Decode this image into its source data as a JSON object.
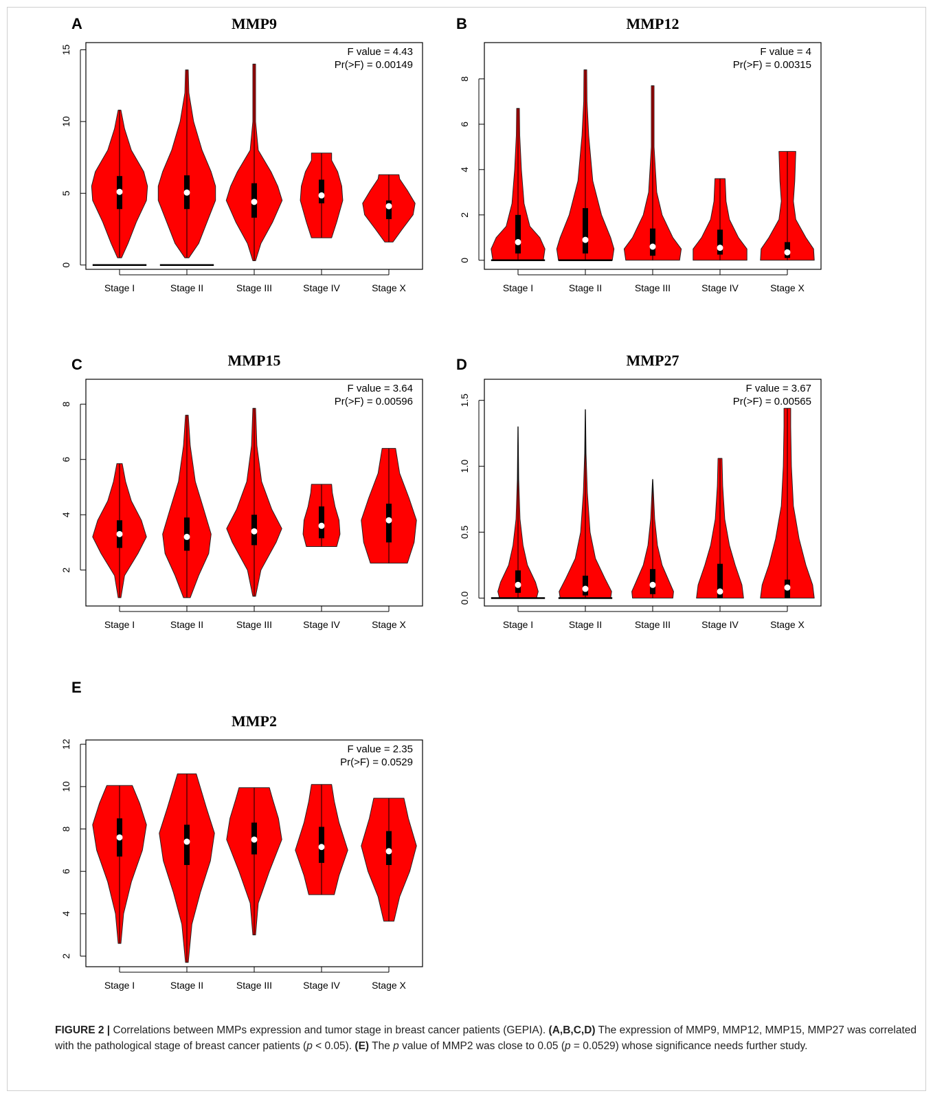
{
  "colors": {
    "violin": "#ff0000",
    "outline": "#222222",
    "box": "#000000",
    "median": "#ffffff"
  },
  "chart_data": [
    {
      "type": "violin",
      "panel_label": "A",
      "title": "MMP9",
      "categories": [
        "Stage I",
        "Stage II",
        "Stage III",
        "Stage IV",
        "Stage X"
      ],
      "ylim": [
        -0.3,
        15.5
      ],
      "yticks": [
        0,
        5,
        10,
        15
      ],
      "annotation": [
        "F value = 4.43",
        "Pr(>F) = 0.00149"
      ],
      "violins": [
        {
          "min": 0.5,
          "max": 10.8,
          "q1": 3.9,
          "median": 5.1,
          "q3": 6.2,
          "widths": [
            [
              0.5,
              0.06
            ],
            [
              1.5,
              0.25
            ],
            [
              3,
              0.5
            ],
            [
              4.5,
              0.8
            ],
            [
              5.5,
              0.83
            ],
            [
              6.5,
              0.72
            ],
            [
              8,
              0.35
            ],
            [
              9.5,
              0.15
            ],
            [
              10.8,
              0.02
            ]
          ],
          "zero_line": true
        },
        {
          "min": 0.5,
          "max": 13.6,
          "q1": 3.9,
          "median": 5.05,
          "q3": 6.25,
          "widths": [
            [
              0.5,
              0.06
            ],
            [
              1.5,
              0.35
            ],
            [
              3,
              0.6
            ],
            [
              4.5,
              0.85
            ],
            [
              5.5,
              0.85
            ],
            [
              6.5,
              0.72
            ],
            [
              8,
              0.45
            ],
            [
              10,
              0.2
            ],
            [
              12,
              0.06
            ],
            [
              13.6,
              0.0
            ]
          ],
          "zero_line": true
        },
        {
          "min": 0.3,
          "max": 14.0,
          "q1": 3.3,
          "median": 4.4,
          "q3": 5.7,
          "widths": [
            [
              0.3,
              0.02
            ],
            [
              1.5,
              0.2
            ],
            [
              3,
              0.55
            ],
            [
              4.5,
              0.83
            ],
            [
              5.5,
              0.7
            ],
            [
              6.5,
              0.5
            ],
            [
              8,
              0.12
            ],
            [
              10,
              0.03
            ],
            [
              14,
              0.0
            ]
          ]
        },
        {
          "min": 1.9,
          "max": 7.8,
          "q1": 4.3,
          "median": 4.85,
          "q3": 5.95,
          "widths": [
            [
              1.9,
              0.3
            ],
            [
              3,
              0.45
            ],
            [
              4.5,
              0.63
            ],
            [
              5.5,
              0.6
            ],
            [
              6.5,
              0.48
            ],
            [
              7.3,
              0.3
            ],
            [
              7.8,
              0.3
            ]
          ]
        },
        {
          "min": 1.6,
          "max": 6.3,
          "q1": 3.2,
          "median": 4.1,
          "q3": 4.5,
          "widths": [
            [
              1.6,
              0.12
            ],
            [
              2.5,
              0.4
            ],
            [
              3.5,
              0.72
            ],
            [
              4.3,
              0.78
            ],
            [
              5.2,
              0.55
            ],
            [
              6.0,
              0.32
            ],
            [
              6.3,
              0.3
            ]
          ]
        }
      ]
    },
    {
      "type": "violin",
      "panel_label": "B",
      "title": "MMP12",
      "categories": [
        "Stage I",
        "Stage II",
        "Stage III",
        "Stage IV",
        "Stage X"
      ],
      "ylim": [
        -0.4,
        9.6
      ],
      "yticks": [
        0,
        2,
        4,
        6,
        8
      ],
      "annotation": [
        "F value = 4",
        "Pr(>F) = 0.00315"
      ],
      "violins": [
        {
          "min": 0,
          "max": 6.7,
          "q1": 0.3,
          "median": 0.8,
          "q3": 2.0,
          "widths": [
            [
              0,
              0.75
            ],
            [
              0.5,
              0.8
            ],
            [
              1,
              0.65
            ],
            [
              1.5,
              0.35
            ],
            [
              2.5,
              0.18
            ],
            [
              4,
              0.1
            ],
            [
              5.5,
              0.05
            ],
            [
              6.7,
              0.0
            ]
          ],
          "zero_line": true
        },
        {
          "min": 0,
          "max": 8.4,
          "q1": 0.3,
          "median": 0.9,
          "q3": 2.3,
          "widths": [
            [
              0,
              0.8
            ],
            [
              0.5,
              0.85
            ],
            [
              1,
              0.75
            ],
            [
              2,
              0.48
            ],
            [
              3.5,
              0.22
            ],
            [
              5.5,
              0.1
            ],
            [
              7,
              0.05
            ],
            [
              8.4,
              0.0
            ]
          ],
          "zero_line": true
        },
        {
          "min": 0,
          "max": 7.7,
          "q1": 0.2,
          "median": 0.6,
          "q3": 1.4,
          "widths": [
            [
              0,
              0.8
            ],
            [
              0.5,
              0.85
            ],
            [
              1,
              0.6
            ],
            [
              2,
              0.28
            ],
            [
              3,
              0.12
            ],
            [
              5,
              0.03
            ],
            [
              7.7,
              0.0
            ]
          ]
        },
        {
          "min": 0,
          "max": 3.6,
          "q1": 0.25,
          "median": 0.55,
          "q3": 1.35,
          "widths": [
            [
              0,
              0.8
            ],
            [
              0.5,
              0.8
            ],
            [
              1,
              0.55
            ],
            [
              1.8,
              0.28
            ],
            [
              2.6,
              0.18
            ],
            [
              3.6,
              0.15
            ]
          ]
        },
        {
          "min": 0,
          "max": 4.8,
          "q1": 0.1,
          "median": 0.35,
          "q3": 0.8,
          "widths": [
            [
              0,
              0.8
            ],
            [
              0.5,
              0.78
            ],
            [
              1,
              0.55
            ],
            [
              1.8,
              0.25
            ],
            [
              2.6,
              0.18
            ],
            [
              3.5,
              0.22
            ],
            [
              4.8,
              0.25
            ]
          ]
        }
      ]
    },
    {
      "type": "violin",
      "panel_label": "C",
      "title": "MMP15",
      "categories": [
        "Stage I",
        "Stage II",
        "Stage III",
        "Stage IV",
        "Stage X"
      ],
      "ylim": [
        0.7,
        8.9
      ],
      "yticks": [
        2,
        4,
        6,
        8
      ],
      "annotation": [
        "F value = 3.64",
        "Pr(>F) = 0.00596"
      ],
      "violins": [
        {
          "min": 1.0,
          "max": 5.85,
          "q1": 2.8,
          "median": 3.3,
          "q3": 3.8,
          "widths": [
            [
              1.0,
              0.0
            ],
            [
              1.8,
              0.15
            ],
            [
              2.6,
              0.55
            ],
            [
              3.2,
              0.8
            ],
            [
              3.8,
              0.65
            ],
            [
              4.5,
              0.35
            ],
            [
              5.2,
              0.18
            ],
            [
              5.85,
              0.08
            ]
          ]
        },
        {
          "min": 1.0,
          "max": 7.6,
          "q1": 2.7,
          "median": 3.2,
          "q3": 3.9,
          "widths": [
            [
              1.0,
              0.1
            ],
            [
              1.8,
              0.35
            ],
            [
              2.6,
              0.65
            ],
            [
              3.3,
              0.72
            ],
            [
              4.2,
              0.5
            ],
            [
              5.2,
              0.25
            ],
            [
              6.5,
              0.1
            ],
            [
              7.6,
              0.0
            ]
          ]
        },
        {
          "min": 1.05,
          "max": 7.85,
          "q1": 2.9,
          "median": 3.4,
          "q3": 4.0,
          "widths": [
            [
              1.05,
              0.0
            ],
            [
              2,
              0.2
            ],
            [
              3,
              0.65
            ],
            [
              3.5,
              0.82
            ],
            [
              4.2,
              0.52
            ],
            [
              5.2,
              0.22
            ],
            [
              6.5,
              0.08
            ],
            [
              7.85,
              0.0
            ]
          ]
        },
        {
          "min": 2.85,
          "max": 5.1,
          "q1": 3.15,
          "median": 3.6,
          "q3": 4.3,
          "widths": [
            [
              2.85,
              0.45
            ],
            [
              3.3,
              0.55
            ],
            [
              3.8,
              0.52
            ],
            [
              4.3,
              0.4
            ],
            [
              4.8,
              0.32
            ],
            [
              5.1,
              0.3
            ]
          ]
        },
        {
          "min": 2.25,
          "max": 6.4,
          "q1": 3.0,
          "median": 3.8,
          "q3": 4.4,
          "widths": [
            [
              2.25,
              0.55
            ],
            [
              3,
              0.75
            ],
            [
              3.8,
              0.82
            ],
            [
              4.6,
              0.6
            ],
            [
              5.5,
              0.32
            ],
            [
              6.4,
              0.2
            ]
          ]
        }
      ]
    },
    {
      "type": "violin",
      "panel_label": "D",
      "title": "MMP27",
      "categories": [
        "Stage I",
        "Stage II",
        "Stage III",
        "Stage IV",
        "Stage X"
      ],
      "ylim": [
        -0.06,
        1.66
      ],
      "yticks": [
        0.0,
        0.5,
        1.0,
        1.5
      ],
      "annotation": [
        "F value = 3.67",
        "Pr(>F) = 0.00565"
      ],
      "violins": [
        {
          "min": 0,
          "max": 1.3,
          "q1": 0.04,
          "median": 0.1,
          "q3": 0.21,
          "widths": [
            [
              0,
              0.55
            ],
            [
              0.05,
              0.6
            ],
            [
              0.12,
              0.52
            ],
            [
              0.25,
              0.28
            ],
            [
              0.4,
              0.15
            ],
            [
              0.6,
              0.06
            ],
            [
              0.9,
              0.02
            ],
            [
              1.3,
              0.0
            ]
          ],
          "zero_line": true
        },
        {
          "min": 0,
          "max": 1.43,
          "q1": 0.02,
          "median": 0.07,
          "q3": 0.17,
          "widths": [
            [
              0,
              0.75
            ],
            [
              0.05,
              0.78
            ],
            [
              0.15,
              0.58
            ],
            [
              0.3,
              0.3
            ],
            [
              0.5,
              0.14
            ],
            [
              0.8,
              0.06
            ],
            [
              1.1,
              0.02
            ],
            [
              1.43,
              0.0
            ]
          ],
          "zero_line": true
        },
        {
          "min": 0,
          "max": 0.9,
          "q1": 0.03,
          "median": 0.1,
          "q3": 0.22,
          "widths": [
            [
              0,
              0.6
            ],
            [
              0.05,
              0.62
            ],
            [
              0.12,
              0.5
            ],
            [
              0.25,
              0.28
            ],
            [
              0.4,
              0.14
            ],
            [
              0.6,
              0.06
            ],
            [
              0.9,
              0.0
            ]
          ]
        },
        {
          "min": 0,
          "max": 1.06,
          "q1": 0.0,
          "median": 0.05,
          "q3": 0.26,
          "widths": [
            [
              0,
              0.7
            ],
            [
              0.1,
              0.65
            ],
            [
              0.25,
              0.45
            ],
            [
              0.4,
              0.28
            ],
            [
              0.6,
              0.14
            ],
            [
              0.85,
              0.08
            ],
            [
              1.06,
              0.06
            ]
          ]
        },
        {
          "min": 0,
          "max": 1.44,
          "q1": 0.0,
          "median": 0.08,
          "q3": 0.14,
          "widths": [
            [
              0,
              0.8
            ],
            [
              0.1,
              0.75
            ],
            [
              0.25,
              0.55
            ],
            [
              0.45,
              0.35
            ],
            [
              0.7,
              0.18
            ],
            [
              1.0,
              0.12
            ],
            [
              1.3,
              0.1
            ],
            [
              1.44,
              0.1
            ]
          ]
        }
      ]
    },
    {
      "type": "violin",
      "panel_label": "E",
      "title": "MMP2",
      "categories": [
        "Stage I",
        "Stage II",
        "Stage III",
        "Stage IV",
        "Stage X"
      ],
      "ylim": [
        1.5,
        12.2
      ],
      "yticks": [
        2,
        4,
        6,
        8,
        10,
        12
      ],
      "annotation": [
        "F value = 2.35",
        "Pr(>F) = 0.0529"
      ],
      "violins": [
        {
          "min": 2.6,
          "max": 10.05,
          "q1": 6.7,
          "median": 7.6,
          "q3": 8.5,
          "widths": [
            [
              2.6,
              0.02
            ],
            [
              4,
              0.12
            ],
            [
              5.5,
              0.35
            ],
            [
              7,
              0.68
            ],
            [
              8.2,
              0.8
            ],
            [
              9.2,
              0.6
            ],
            [
              10.05,
              0.38
            ]
          ]
        },
        {
          "min": 1.7,
          "max": 10.6,
          "q1": 6.3,
          "median": 7.4,
          "q3": 8.2,
          "widths": [
            [
              1.7,
              0.0
            ],
            [
              3.5,
              0.15
            ],
            [
              5,
              0.4
            ],
            [
              6.5,
              0.7
            ],
            [
              7.8,
              0.82
            ],
            [
              9,
              0.58
            ],
            [
              10.6,
              0.28
            ]
          ]
        },
        {
          "min": 3.0,
          "max": 9.95,
          "q1": 6.8,
          "median": 7.5,
          "q3": 8.3,
          "widths": [
            [
              3.0,
              0.02
            ],
            [
              4.5,
              0.12
            ],
            [
              6,
              0.45
            ],
            [
              7.5,
              0.82
            ],
            [
              8.5,
              0.72
            ],
            [
              9.4,
              0.55
            ],
            [
              9.95,
              0.45
            ]
          ]
        },
        {
          "min": 4.9,
          "max": 10.1,
          "q1": 6.4,
          "median": 7.15,
          "q3": 8.1,
          "widths": [
            [
              4.9,
              0.38
            ],
            [
              5.8,
              0.52
            ],
            [
              7,
              0.78
            ],
            [
              8.3,
              0.52
            ],
            [
              9.3,
              0.38
            ],
            [
              10.1,
              0.3
            ]
          ]
        },
        {
          "min": 3.65,
          "max": 9.45,
          "q1": 6.3,
          "median": 6.95,
          "q3": 7.9,
          "widths": [
            [
              3.65,
              0.15
            ],
            [
              4.8,
              0.32
            ],
            [
              6,
              0.62
            ],
            [
              7.2,
              0.82
            ],
            [
              8.5,
              0.58
            ],
            [
              9.45,
              0.45
            ]
          ]
        }
      ]
    }
  ],
  "caption": {
    "label": "FIGURE 2 |",
    "text1": " Correlations between MMPs expression and tumor stage in breast cancer patients (GEPIA). ",
    "ref1": "(A,B,C,D)",
    "text2": " The expression of MMP9, MMP12, MMP15, MMP27 was correlated with the pathological stage of breast cancer patients (",
    "p1": "p",
    "text3": " < 0.05). ",
    "ref2": "(E)",
    "text4": " The ",
    "p2": "p",
    "text5": " value of MMP2 was close to 0.05 (",
    "p3": "p",
    "text6": " = 0.0529) whose significance needs further study."
  }
}
